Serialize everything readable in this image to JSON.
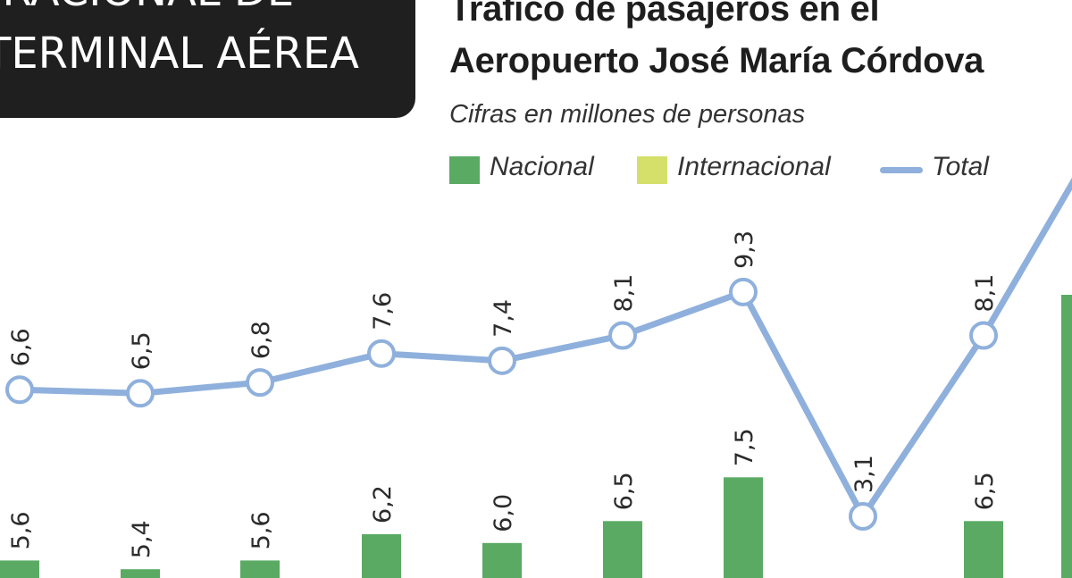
{
  "header": {
    "banner_line1": "ERACIONAL DE",
    "banner_line2": "TERMINAL AÉREA",
    "title_line1": "Tráfico de pasajeros en el",
    "title_line2": "Aeropuerto José María Córdova",
    "subtitle": "Cifras en millones de personas"
  },
  "legend": {
    "nacional": "Nacional",
    "internacional": "Internacional",
    "total": "Total"
  },
  "colors": {
    "nacional": "#5aaa64",
    "internacional": "#d4e06a",
    "total": "#8fb0dc",
    "banner": "#1f1f1f"
  },
  "chart_data": {
    "type": "line",
    "series": [
      {
        "name": "Total",
        "values": [
          6.6,
          6.5,
          6.8,
          7.6,
          7.4,
          8.1,
          9.3,
          3.1,
          8.1
        ]
      },
      {
        "name": "Nacional",
        "values": [
          5.6,
          5.4,
          5.6,
          6.2,
          6.0,
          6.5,
          7.5,
          null,
          6.5
        ]
      }
    ],
    "total_labels": [
      "6,6",
      "6,5",
      "6,8",
      "7,6",
      "7,4",
      "8,1",
      "9,3",
      "3,1",
      "8,1"
    ],
    "nacional_labels": [
      "5,6",
      "5,4",
      "5,6",
      "6,2",
      "6,0",
      "6,5",
      "7,5",
      "",
      "6,5"
    ]
  }
}
